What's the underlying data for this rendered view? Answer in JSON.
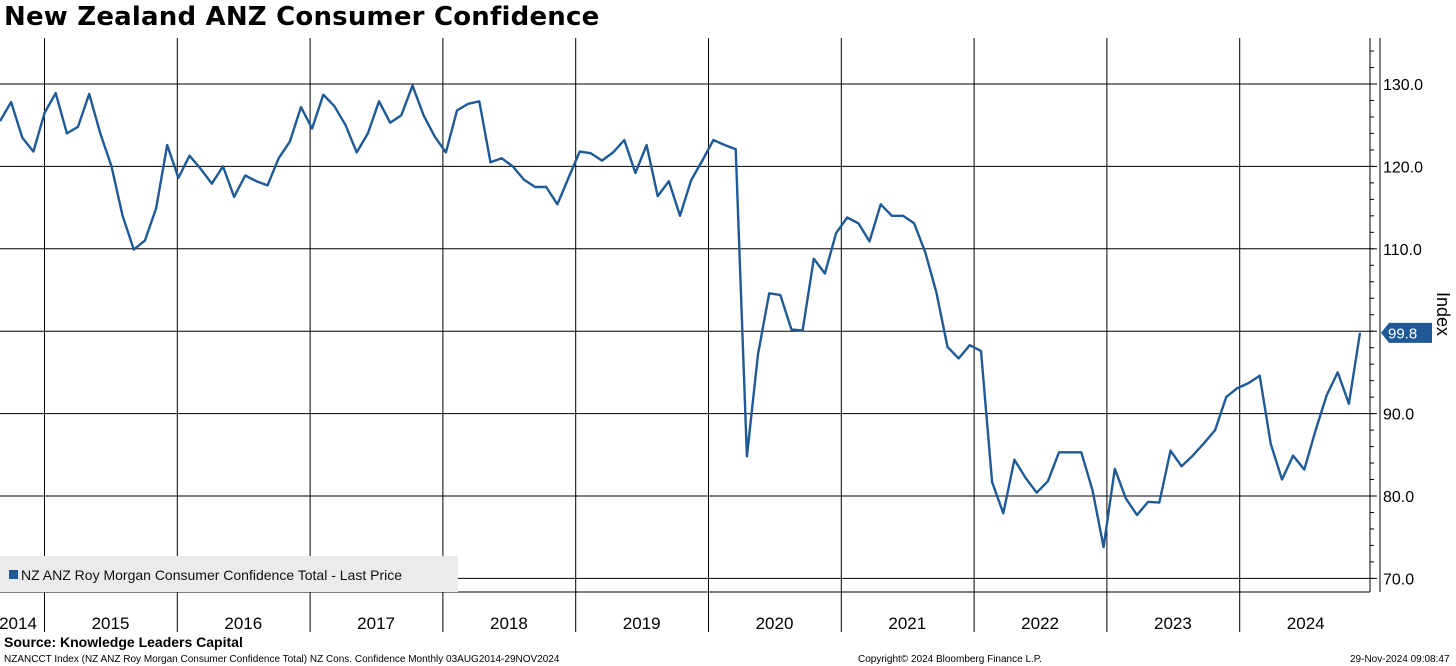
{
  "title": "New Zealand ANZ Consumer Confidence",
  "footer": {
    "source": "Source: Knowledge Leaders Capital",
    "ticker": "NZANCCT Index (NZ ANZ Roy Morgan Consumer Confidence Total) NZ Cons. Confidence Monthly 03AUG2014-29NOV2024",
    "copyright": "Copyright© 2024 Bloomberg Finance L.P.",
    "timestamp": "29-Nov-2024 09:08:47"
  },
  "colors": {
    "series": "#1f5a96",
    "grid": "#000000"
  },
  "chart_data": {
    "type": "line",
    "title": "New Zealand ANZ Consumer Confidence",
    "ylabel": "Index",
    "ylim": [
      68,
      136
    ],
    "yticks": [
      70,
      80,
      90,
      100,
      110,
      120,
      130
    ],
    "ytick_labels": [
      "70.0",
      "80.0",
      "90.0",
      "",
      "110.0",
      "120.0",
      "130.0"
    ],
    "year_labels": [
      "2014",
      "2015",
      "2016",
      "2017",
      "2018",
      "2019",
      "2020",
      "2021",
      "2022",
      "2023",
      "2024"
    ],
    "start": "2014-08",
    "end": "2024-11",
    "frequency": "monthly",
    "grid": true,
    "legend": {
      "position": "bottom-left"
    },
    "last_value_label": "99.8",
    "series": [
      {
        "name": "NZ ANZ Roy Morgan Consumer Confidence Total - Last Price",
        "values": [
          125.5,
          127.8,
          123.5,
          121.8,
          126.5,
          128.9,
          124.0,
          124.8,
          128.8,
          124.0,
          120.0,
          114.0,
          109.9,
          111.0,
          114.9,
          122.6,
          118.6,
          121.3,
          119.7,
          117.9,
          120.0,
          116.3,
          118.9,
          118.2,
          117.7,
          121.0,
          123.0,
          127.2,
          124.6,
          128.7,
          127.3,
          125.0,
          121.7,
          124.0,
          127.9,
          125.3,
          126.2,
          129.8,
          126.2,
          123.6,
          121.7,
          126.8,
          127.6,
          127.9,
          120.5,
          121.0,
          120.0,
          118.4,
          117.5,
          117.5,
          115.4,
          118.6,
          121.8,
          121.6,
          120.7,
          121.7,
          123.2,
          119.2,
          122.6,
          116.4,
          118.2,
          114.0,
          118.3,
          120.7,
          123.2,
          122.6,
          122.1,
          84.8,
          97.2,
          104.6,
          104.4,
          100.2,
          100.1,
          108.8,
          107.0,
          111.9,
          113.8,
          113.1,
          110.9,
          115.4,
          114.0,
          114.0,
          113.1,
          109.6,
          104.7,
          98.1,
          96.7,
          98.3,
          97.6,
          81.7,
          77.9,
          84.4,
          82.2,
          80.4,
          81.8,
          85.3,
          85.3,
          85.3,
          80.7,
          73.8,
          83.3,
          79.7,
          77.7,
          79.3,
          79.2,
          85.5,
          83.6,
          84.9,
          86.4,
          88.0,
          92.0,
          93.1,
          93.7,
          94.6,
          86.3,
          82.0,
          84.9,
          83.2,
          87.9,
          92.2,
          95.0,
          91.2,
          99.8
        ]
      }
    ]
  }
}
